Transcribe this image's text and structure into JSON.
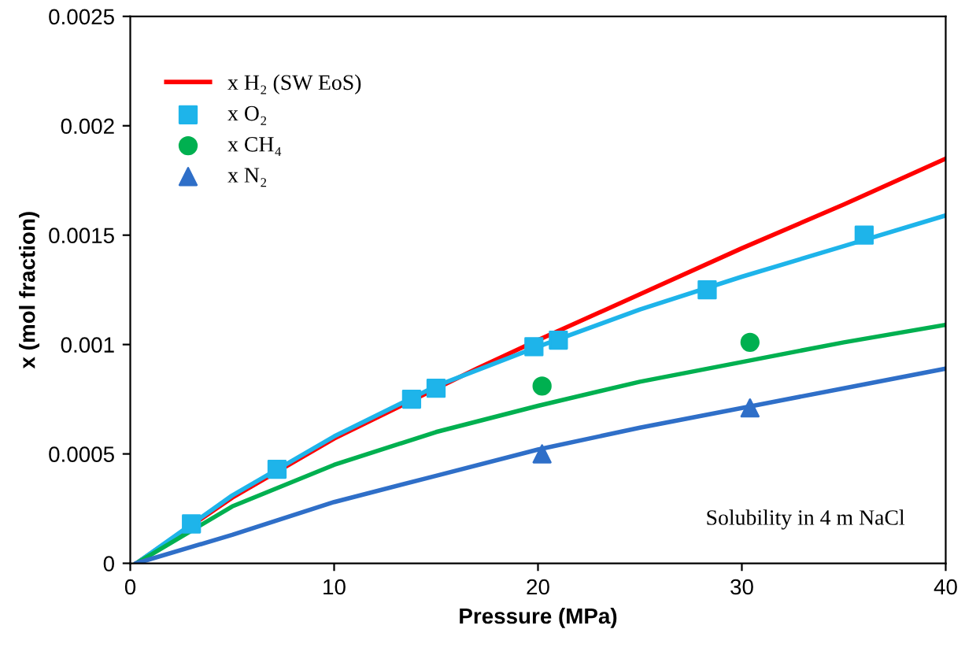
{
  "chart_data": {
    "type": "line",
    "xlabel": "Pressure (MPa)",
    "ylabel": "x (mol fraction)",
    "xlim": [
      0,
      40
    ],
    "xticks": [
      0,
      10,
      20,
      30,
      40
    ],
    "ylim": [
      0,
      0.0025
    ],
    "yticks": [
      0,
      0.0005,
      0.001,
      0.0015,
      0.002,
      0.0025
    ],
    "legend": "top left",
    "grid": false,
    "annotations": [
      "Solubility in 4 m NaCl"
    ],
    "series": [
      {
        "name": "x H₂ (SW EoS)",
        "color": "#ff0000",
        "marker": "none",
        "line_style": "solid",
        "x": [
          0.3,
          5,
          10,
          17,
          20,
          25,
          30,
          35,
          40
        ],
        "values": [
          0.0,
          0.0003,
          0.00057,
          0.00089,
          0.00102,
          0.00123,
          0.00144,
          0.00164,
          0.00185
        ]
      },
      {
        "color": "#1eb4ea",
        "marker": "none",
        "line_style": "solid",
        "x": [
          0.3,
          5,
          10,
          15,
          20,
          25,
          30,
          35,
          40
        ],
        "values": [
          0.0,
          0.00031,
          0.00058,
          0.00081,
          0.00099,
          0.00116,
          0.00131,
          0.00145,
          0.00159
        ]
      },
      {
        "color": "#00b050",
        "marker": "none",
        "line_style": "solid",
        "x": [
          0.3,
          5,
          10,
          15,
          20,
          25,
          30,
          35,
          40
        ],
        "values": [
          0.0,
          0.00026,
          0.00045,
          0.0006,
          0.00072,
          0.00083,
          0.00092,
          0.00101,
          0.00109
        ]
      },
      {
        "color": "#2f6fc8",
        "marker": "none",
        "line_style": "solid",
        "x": [
          0.3,
          5,
          10,
          15,
          20,
          25,
          30,
          35,
          40
        ],
        "values": [
          0.0,
          0.00013,
          0.00028,
          0.0004,
          0.00052,
          0.00062,
          0.00071,
          0.0008,
          0.00089
        ]
      },
      {
        "name": "x O₂",
        "type": "scatter",
        "color": "#1eb4ea",
        "marker": "square",
        "x": [
          3,
          7.2,
          13.8,
          15,
          19.8,
          21,
          28.3,
          36
        ],
        "values": [
          0.00018,
          0.00043,
          0.00075,
          0.0008,
          0.00099,
          0.00102,
          0.00125,
          0.0015
        ]
      },
      {
        "name": "x CH₄",
        "type": "scatter",
        "color": "#00b050",
        "marker": "circle",
        "x": [
          20.2,
          30.4
        ],
        "values": [
          0.00081,
          0.00101
        ]
      },
      {
        "name": "x N₂",
        "type": "scatter",
        "color": "#2f6fc8",
        "marker": "triangle",
        "x": [
          20.2,
          30.4
        ],
        "values": [
          0.0005,
          0.00071
        ]
      }
    ]
  }
}
